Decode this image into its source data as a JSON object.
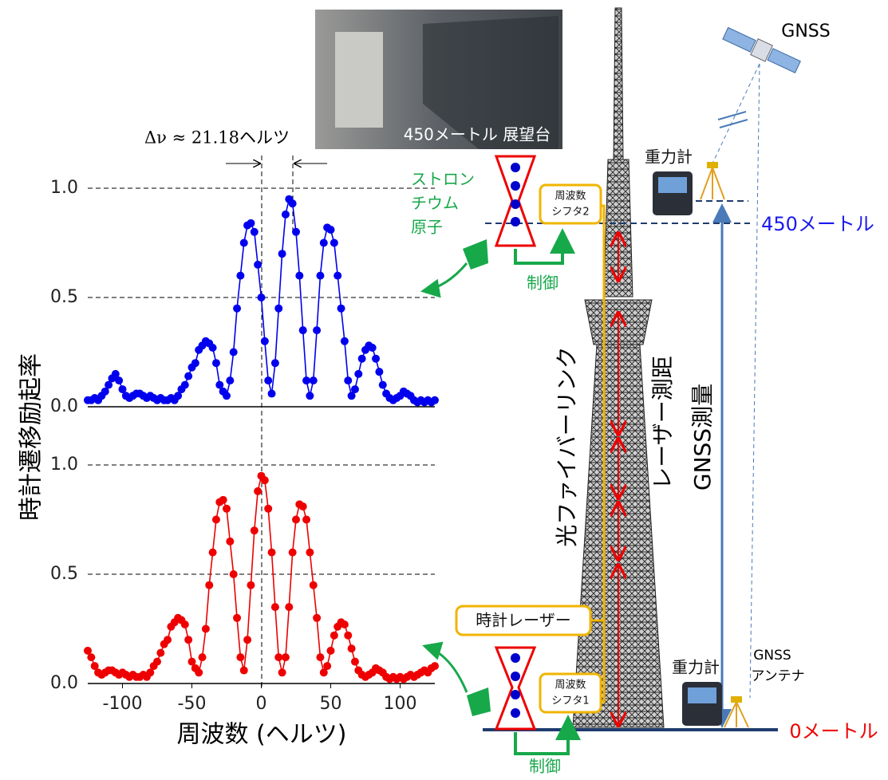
{
  "chart_data": [
    {
      "type": "line",
      "color": "#0000ee",
      "markers": true,
      "annotation": "Δν ≈ 21.18ヘルツ",
      "ylabel": "時計遷移励起率",
      "xlim": [
        -125,
        125
      ],
      "ylim": [
        0,
        1
      ],
      "yticks": [
        {
          "value": 0,
          "label": "0.0"
        },
        {
          "value": 0.5,
          "label": "0.5"
        },
        {
          "value": 1,
          "label": "1.0"
        }
      ],
      "grid": true,
      "x": [
        -125,
        -122.5,
        -120,
        -117.5,
        -115,
        -112.5,
        -110,
        -107.5,
        -105,
        -102.5,
        -100,
        -97.5,
        -95,
        -92.5,
        -90,
        -87.5,
        -85,
        -82.5,
        -80,
        -77.5,
        -75,
        -72.5,
        -70,
        -67.5,
        -65,
        -62.5,
        -60,
        -57.5,
        -55,
        -52.5,
        -50,
        -47.5,
        -45,
        -42.5,
        -40,
        -37.5,
        -35,
        -32.5,
        -30,
        -27.5,
        -25,
        -22.5,
        -20,
        -17.5,
        -15,
        -12.5,
        -10,
        -7.5,
        -5,
        -2.5,
        0,
        2.5,
        5,
        7.5,
        10,
        12.5,
        15,
        17.5,
        20,
        22.5,
        25,
        27.5,
        30,
        32.5,
        35,
        37.5,
        40,
        42.5,
        45,
        47.5,
        50,
        52.5,
        55,
        57.5,
        60,
        62.5,
        65,
        67.5,
        70,
        72.5,
        75,
        77.5,
        80,
        82.5,
        85,
        87.5,
        90,
        92.5,
        95,
        97.5,
        100,
        102.5,
        105,
        107.5,
        110,
        112.5,
        115,
        117.5,
        120,
        122.5,
        125
      ],
      "values": [
        0.03,
        0.03,
        0.04,
        0.03,
        0.05,
        0.07,
        0.1,
        0.13,
        0.15,
        0.12,
        0.08,
        0.05,
        0.04,
        0.05,
        0.06,
        0.06,
        0.05,
        0.04,
        0.05,
        0.04,
        0.03,
        0.04,
        0.03,
        0.03,
        0.04,
        0.03,
        0.05,
        0.08,
        0.1,
        0.14,
        0.18,
        0.2,
        0.26,
        0.28,
        0.3,
        0.29,
        0.27,
        0.2,
        0.1,
        0.07,
        0.05,
        0.12,
        0.25,
        0.45,
        0.6,
        0.75,
        0.83,
        0.84,
        0.8,
        0.65,
        0.5,
        0.3,
        0.12,
        0.06,
        0.2,
        0.45,
        0.7,
        0.88,
        0.95,
        0.93,
        0.8,
        0.6,
        0.35,
        0.12,
        0.05,
        0.12,
        0.35,
        0.6,
        0.75,
        0.82,
        0.81,
        0.75,
        0.6,
        0.45,
        0.3,
        0.12,
        0.05,
        0.08,
        0.15,
        0.22,
        0.26,
        0.28,
        0.27,
        0.22,
        0.16,
        0.1,
        0.06,
        0.04,
        0.03,
        0.04,
        0.05,
        0.07,
        0.06,
        0.05,
        0.03,
        0.02,
        0.03,
        0.02,
        0.03,
        0.02,
        0.03
      ]
    },
    {
      "type": "line",
      "color": "#ee0000",
      "markers": true,
      "xlabel": "周波数 (ヘルツ)",
      "xlim": [
        -125,
        125
      ],
      "ylim": [
        0,
        1
      ],
      "xticks": [
        -100,
        -50,
        0,
        50,
        100
      ],
      "yticks": [
        {
          "value": 0,
          "label": "0.0"
        },
        {
          "value": 0.5,
          "label": "0.5"
        },
        {
          "value": 1,
          "label": "1.0"
        }
      ],
      "grid": true,
      "x": [
        -125,
        -122.5,
        -120,
        -117.5,
        -115,
        -112.5,
        -110,
        -107.5,
        -105,
        -102.5,
        -100,
        -97.5,
        -95,
        -92.5,
        -90,
        -87.5,
        -85,
        -82.5,
        -80,
        -77.5,
        -75,
        -72.5,
        -70,
        -67.5,
        -65,
        -62.5,
        -60,
        -57.5,
        -55,
        -52.5,
        -50,
        -47.5,
        -45,
        -42.5,
        -40,
        -37.5,
        -35,
        -32.5,
        -30,
        -27.5,
        -25,
        -22.5,
        -20,
        -17.5,
        -15,
        -12.5,
        -10,
        -7.5,
        -5,
        -2.5,
        0,
        2.5,
        5,
        7.5,
        10,
        12.5,
        15,
        17.5,
        20,
        22.5,
        25,
        27.5,
        30,
        32.5,
        35,
        37.5,
        40,
        42.5,
        45,
        47.5,
        50,
        52.5,
        55,
        57.5,
        60,
        62.5,
        65,
        67.5,
        70,
        72.5,
        75,
        77.5,
        80,
        82.5,
        85,
        87.5,
        90,
        92.5,
        95,
        97.5,
        100,
        102.5,
        105,
        107.5,
        110,
        112.5,
        115,
        117.5,
        120,
        122.5,
        125
      ],
      "values": [
        0.15,
        0.12,
        0.08,
        0.05,
        0.04,
        0.05,
        0.06,
        0.06,
        0.05,
        0.04,
        0.05,
        0.04,
        0.03,
        0.04,
        0.03,
        0.03,
        0.04,
        0.03,
        0.05,
        0.08,
        0.1,
        0.14,
        0.18,
        0.2,
        0.26,
        0.28,
        0.3,
        0.29,
        0.27,
        0.2,
        0.1,
        0.07,
        0.05,
        0.12,
        0.25,
        0.45,
        0.6,
        0.75,
        0.83,
        0.84,
        0.8,
        0.65,
        0.5,
        0.3,
        0.12,
        0.06,
        0.2,
        0.45,
        0.7,
        0.88,
        0.95,
        0.93,
        0.8,
        0.6,
        0.35,
        0.12,
        0.05,
        0.12,
        0.35,
        0.6,
        0.75,
        0.82,
        0.81,
        0.75,
        0.6,
        0.45,
        0.3,
        0.12,
        0.05,
        0.08,
        0.15,
        0.22,
        0.26,
        0.28,
        0.27,
        0.22,
        0.16,
        0.1,
        0.06,
        0.04,
        0.03,
        0.04,
        0.05,
        0.07,
        0.06,
        0.05,
        0.03,
        0.02,
        0.03,
        0.02,
        0.03,
        0.02,
        0.03,
        0.04,
        0.03,
        0.04,
        0.05,
        0.06,
        0.05,
        0.07,
        0.08
      ]
    }
  ],
  "diagram": {
    "photo_caption": "450メートル 展望台",
    "satellite": "GNSS",
    "gravimeter_top": "重力計",
    "gravimeter_bottom": "重力計",
    "atoms": [
      "ストロン",
      "チウム",
      "原子"
    ],
    "shifter_top": [
      "周波数",
      "シフタ2"
    ],
    "shifter_bottom": [
      "周波数",
      "シフタ1"
    ],
    "control_top": "制御",
    "control_bottom": "制御",
    "height_top": "450メートル",
    "height_bottom": "0メートル",
    "fiber_link": "光ファイバーリンク",
    "laser_ranging": "レーザー測距",
    "gnss_survey": "GNSS測量",
    "clock_laser": "時計レーザー",
    "gnss_antenna": [
      "GNSS",
      "アンテナ"
    ]
  }
}
